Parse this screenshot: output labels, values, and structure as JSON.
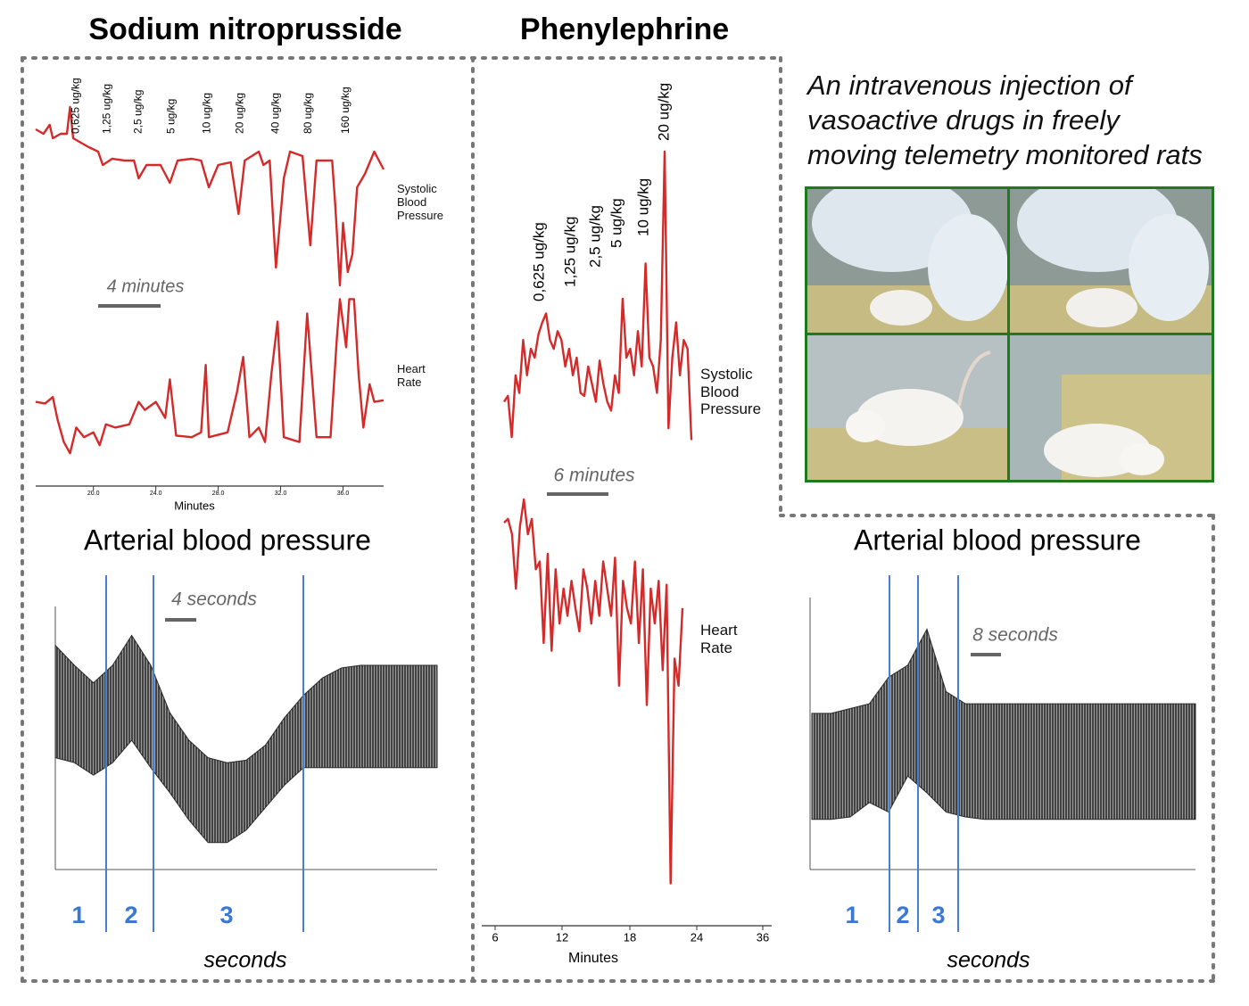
{
  "headings": [
    "Sodium nitroprusside",
    "Phenylephrine"
  ],
  "description": [
    "An intravenous injection of",
    "vasoactive drugs in freely",
    "moving telemetry monitored rats"
  ],
  "chart_data": [
    {
      "type": "line",
      "xlim": [
        16.3,
        38.6
      ],
      "ylim": [
        0,
        100
      ],
      "scale_label": "4 minutes",
      "series": [
        {
          "name": "Systolic Blood Pressure",
          "color": "#d42a2a",
          "x": [
            16.3,
            16.8,
            17.2,
            17.4,
            17.9,
            18.3,
            18.5,
            18.7,
            19.2,
            19.7,
            20.3,
            20.6,
            21.2,
            22.0,
            22.6,
            22.9,
            23.4,
            24.3,
            24.9,
            25.4,
            26.3,
            26.9,
            27.4,
            28.0,
            28.8,
            29.3,
            29.7,
            30.6,
            30.9,
            31.3,
            31.7,
            32.2,
            32.6,
            33.4,
            33.9,
            34.3,
            35.3,
            35.5,
            35.8,
            36.0,
            36.3,
            36.6,
            36.9,
            37.4,
            38.0,
            38.6
          ],
          "values": [
            87.5,
            85,
            90,
            82.5,
            85,
            85,
            100,
            82.5,
            80,
            77.5,
            75,
            67.5,
            71,
            70,
            70,
            60,
            67.5,
            67.5,
            57.5,
            70,
            71,
            70,
            55,
            67.5,
            69,
            40,
            70,
            75,
            67.5,
            70,
            10,
            60,
            75,
            72.5,
            22.5,
            70,
            70,
            45,
            0,
            35,
            7.5,
            17.5,
            55,
            62.5,
            75,
            65
          ]
        }
      ],
      "annotations": [
        {
          "text": "0,625 ug/kg",
          "x": 18.9
        },
        {
          "text": "1,25 ug/kg",
          "x": 20.9
        },
        {
          "text": "2,5 ug/kg",
          "x": 22.9
        },
        {
          "text": "5 ug/kg",
          "x": 25.0
        },
        {
          "text": "10 ug/kg",
          "x": 27.3
        },
        {
          "text": "20 ug/kg",
          "x": 29.4
        },
        {
          "text": "40 ug/kg",
          "x": 31.7
        },
        {
          "text": "80 ug/kg",
          "x": 33.8
        },
        {
          "text": "160 ug/kg",
          "x": 36.2
        }
      ]
    },
    {
      "type": "line",
      "xlim": [
        16.3,
        38.6
      ],
      "ylim": [
        0,
        100
      ],
      "xlabel": "Minutes",
      "xticks": [
        {
          "value": 20,
          "label": "20.0"
        },
        {
          "value": 24,
          "label": "24.0"
        },
        {
          "value": 28,
          "label": "28.0"
        },
        {
          "value": 32,
          "label": "32.0"
        },
        {
          "value": 36,
          "label": "36.0"
        }
      ],
      "series": [
        {
          "name": "Heart Rate",
          "color": "#d42a2a",
          "x": [
            16.3,
            16.9,
            17.4,
            17.7,
            18.1,
            18.5,
            18.9,
            19.4,
            20.0,
            20.4,
            20.8,
            21.4,
            22.3,
            22.9,
            23.3,
            24.0,
            24.6,
            24.9,
            25.3,
            26.3,
            26.9,
            27.2,
            27.4,
            28.6,
            29.2,
            29.6,
            30.0,
            30.6,
            31.0,
            31.4,
            31.8,
            32.2,
            33.2,
            33.7,
            34.3,
            35.2,
            35.6,
            35.8,
            36.2,
            36.4,
            36.7,
            37.0,
            37.3,
            37.7,
            38.0,
            38.6
          ],
          "values": [
            33,
            32,
            36,
            22,
            8,
            1,
            17,
            11,
            14,
            6,
            19,
            17,
            19,
            33,
            28,
            33,
            23,
            47,
            12,
            11,
            14,
            56,
            11,
            14,
            39,
            61,
            11,
            17,
            8,
            50,
            83,
            11,
            8,
            88,
            11,
            11,
            72,
            97,
            67,
            97,
            97,
            50,
            17,
            44,
            33,
            34
          ]
        }
      ]
    },
    {
      "type": "line",
      "ylim": [
        0,
        100
      ],
      "scale_label": "6 minutes",
      "series": [
        {
          "name": "Systolic Blood Pressure",
          "color": "#d42a2a",
          "values": [
            15,
            17,
            3,
            24,
            18,
            36,
            24,
            33,
            30,
            38,
            42,
            45,
            36,
            33,
            39,
            36,
            27,
            33,
            24,
            30,
            18,
            17,
            27,
            21,
            15,
            29,
            21,
            15,
            12,
            24,
            18,
            50,
            30,
            33,
            24,
            39,
            27,
            62,
            30,
            27,
            18,
            36,
            100,
            6,
            30,
            42,
            24,
            36,
            33,
            2
          ]
        }
      ],
      "annotations": [
        {
          "text": "0,625 ug/kg"
        },
        {
          "text": "1,25 ug/kg"
        },
        {
          "text": "2,5 ug/kg"
        },
        {
          "text": "5 ug/kg"
        },
        {
          "text": "10 ug/kg"
        },
        {
          "text": "20 ug/kg"
        }
      ]
    },
    {
      "type": "line",
      "ylim": [
        0,
        100
      ],
      "xlabel": "Minutes",
      "xticks": [
        6,
        12,
        18,
        24,
        36
      ],
      "series": [
        {
          "name": "Heart Rate",
          "color": "#d42a2a",
          "values": [
            94,
            95,
            91,
            77,
            93,
            100,
            91,
            95,
            82,
            84,
            63,
            86,
            61,
            82,
            68,
            77,
            70,
            79,
            72,
            66,
            82,
            77,
            68,
            79,
            70,
            84,
            77,
            70,
            85,
            52,
            79,
            72,
            68,
            84,
            63,
            82,
            47,
            77,
            68,
            79,
            56,
            78,
            1,
            59,
            52,
            72
          ]
        }
      ]
    },
    {
      "type": "band",
      "title": "Arterial blood pressure",
      "ylim": [
        0,
        100
      ],
      "color": "#2a2a2a",
      "high": [
        88,
        80,
        73,
        80,
        92,
        80,
        61,
        50,
        43,
        41,
        42,
        48,
        59,
        68,
        75,
        79,
        80,
        80,
        80,
        80,
        80
      ],
      "low": [
        43,
        41,
        36,
        41,
        50,
        39,
        29,
        18,
        9,
        9,
        14,
        23,
        32,
        39,
        39,
        39,
        39,
        39,
        39,
        39,
        39
      ],
      "phases": [
        "1",
        "2",
        "3"
      ],
      "scale_label": "4 seconds",
      "xlabel": "seconds"
    },
    {
      "type": "band",
      "title": "Arterial blood pressure",
      "ylim": [
        0,
        100
      ],
      "color": "#2a2a2a",
      "high": [
        63,
        63,
        65,
        67,
        78,
        83,
        98,
        72,
        67,
        67,
        67,
        67,
        67,
        67,
        67,
        67,
        67,
        67,
        67,
        67,
        67
      ],
      "low": [
        19,
        19,
        20,
        26,
        22,
        37,
        30,
        22,
        20,
        19,
        19,
        19,
        19,
        19,
        19,
        19,
        19,
        19,
        19,
        19,
        19
      ],
      "phases": [
        "1",
        "2",
        "3"
      ],
      "scale_label": "8 seconds",
      "xlabel": "seconds"
    }
  ]
}
